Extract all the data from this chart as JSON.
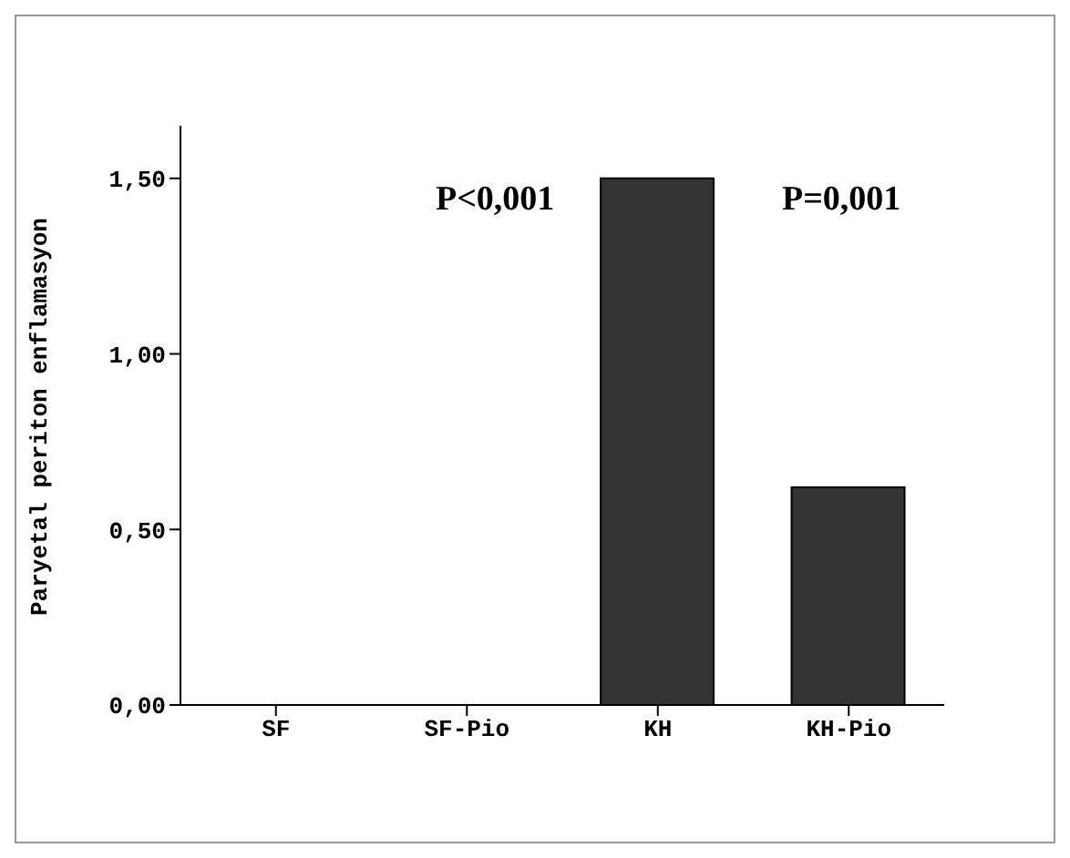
{
  "chart_data": {
    "type": "bar",
    "ylabel": "Paryetal periton enflamasyon",
    "categories": [
      "SF",
      "SF-Pio",
      "KH",
      "KH-Pio"
    ],
    "values": [
      0,
      0,
      1.5,
      0.62
    ],
    "color": "#333333",
    "ylim": [
      0,
      1.65
    ],
    "yticks": [
      {
        "value": 0,
        "label": "0,00"
      },
      {
        "value": 0.5,
        "label": "0,50"
      },
      {
        "value": 1,
        "label": "1,00"
      },
      {
        "value": 1.5,
        "label": "1,50"
      }
    ],
    "annotations": [
      "P<0,001",
      "P=0,001"
    ],
    "grid": false,
    "legend": false
  }
}
